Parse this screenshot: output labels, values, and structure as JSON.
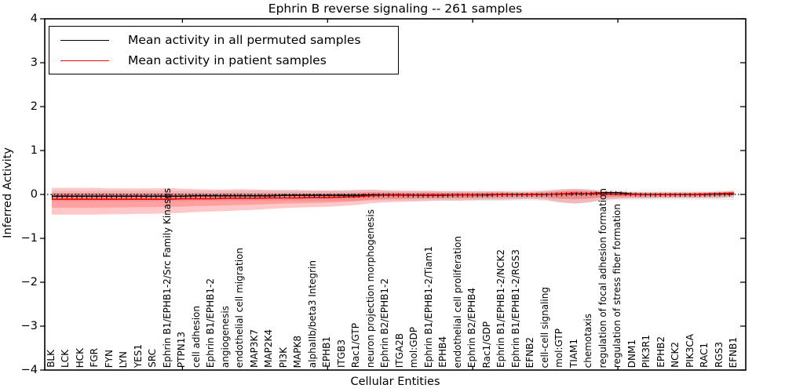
{
  "chart_data": {
    "type": "line",
    "title": "Ephrin B reverse signaling -- 261 samples",
    "xlabel": "Cellular Entities",
    "ylabel": "Inferred Activity",
    "ylim": [
      -4,
      4
    ],
    "ytick_labels": [
      "4",
      "3",
      "2",
      "1",
      "0",
      "−1",
      "−2",
      "−3",
      "−4"
    ],
    "ytick_values": [
      4,
      3,
      2,
      1,
      0,
      -1,
      -2,
      -3,
      -4
    ],
    "x_major_tick_positions": [
      10,
      20,
      30,
      40
    ],
    "grid": false,
    "legend_position": "upper left",
    "zero_reference_line": 0,
    "categories": [
      "BLK",
      "LCK",
      "HCK",
      "FGR",
      "FYN",
      "LYN",
      "YES1",
      "SRC",
      "Ephrin B1/EPHB1-2/Src Family Kinases",
      "PTPN13",
      "cell adhesion",
      "Ephrin B1/EPHB1-2",
      "angiogenesis",
      "endothelial cell migration",
      "MAP3K7",
      "MAP2K4",
      "PI3K",
      "MAPK8",
      "alphaIIb/beta3 Integrin",
      "EPHB1",
      "ITGB3",
      "Rac1/GTP",
      "neuron projection morphogenesis",
      "Ephrin B2/EPHB1-2",
      "ITGA2B",
      "mol:GDP",
      "Ephrin B1/EPHB1-2/Tiam1",
      "EPHB4",
      "endothelial cell proliferation",
      "Ephrin B2/EPHB4",
      "Rac1/GDP",
      "Ephrin B1/EPHB1-2/NCK2",
      "Ephrin B1/EPHB1-2/RGS3",
      "EFNB2",
      "cell-cell signaling",
      "mol:GTP",
      "TIAM1",
      "chemotaxis",
      "regulation of focal adhesion formation",
      "regulation of stress fiber formation",
      "DNM1",
      "PIK3R1",
      "EPHB2",
      "NCK2",
      "PIK3CA",
      "RAC1",
      "RGS3",
      "EFNB1"
    ],
    "legend": [
      {
        "label": "Mean activity in all permuted samples",
        "color": "#000000"
      },
      {
        "label": "Mean activity in patient samples",
        "color": "#ff0000"
      }
    ],
    "series": [
      {
        "name": "Mean activity in all permuted samples",
        "color": "#000000",
        "band_color": "#777777",
        "values": [
          -0.04,
          -0.04,
          -0.04,
          -0.04,
          -0.04,
          -0.04,
          -0.04,
          -0.04,
          -0.04,
          -0.04,
          -0.03,
          -0.03,
          -0.03,
          -0.03,
          -0.03,
          -0.03,
          -0.02,
          -0.02,
          -0.02,
          -0.02,
          -0.02,
          -0.02,
          -0.01,
          -0.01,
          -0.01,
          -0.02,
          -0.02,
          -0.02,
          -0.01,
          -0.01,
          -0.01,
          0.0,
          0.0,
          0.0,
          0.0,
          0.01,
          0.02,
          0.02,
          0.04,
          0.04,
          0.01,
          0.0,
          0.0,
          0.0,
          0.0,
          0.0,
          0.01,
          0.01
        ],
        "band_upper": [
          0.09,
          0.09,
          0.09,
          0.09,
          0.09,
          0.09,
          0.09,
          0.09,
          0.09,
          0.09,
          0.09,
          0.09,
          0.09,
          0.09,
          0.09,
          0.09,
          0.09,
          0.09,
          0.09,
          0.09,
          0.1,
          0.1,
          0.1,
          0.1,
          0.1,
          0.09,
          0.09,
          0.09,
          0.09,
          0.09,
          0.09,
          0.09,
          0.09,
          0.09,
          0.1,
          0.12,
          0.13,
          0.12,
          0.1,
          0.09,
          0.08,
          0.08,
          0.08,
          0.08,
          0.08,
          0.08,
          0.09,
          0.09
        ],
        "band_lower": [
          -0.16,
          -0.16,
          -0.16,
          -0.16,
          -0.16,
          -0.16,
          -0.16,
          -0.16,
          -0.16,
          -0.16,
          -0.15,
          -0.15,
          -0.15,
          -0.15,
          -0.15,
          -0.15,
          -0.15,
          -0.15,
          -0.15,
          -0.15,
          -0.15,
          -0.14,
          -0.14,
          -0.14,
          -0.14,
          -0.14,
          -0.14,
          -0.14,
          -0.15,
          -0.15,
          -0.15,
          -0.15,
          -0.14,
          -0.14,
          -0.15,
          -0.18,
          -0.2,
          -0.18,
          -0.14,
          -0.13,
          -0.12,
          -0.12,
          -0.12,
          -0.12,
          -0.12,
          -0.12,
          -0.12,
          -0.13
        ]
      },
      {
        "name": "Mean activity in patient samples",
        "color": "#ff0000",
        "band_color": "#ff0000",
        "values": [
          -0.11,
          -0.11,
          -0.11,
          -0.11,
          -0.11,
          -0.11,
          -0.11,
          -0.11,
          -0.11,
          -0.1,
          -0.1,
          -0.1,
          -0.09,
          -0.09,
          -0.09,
          -0.08,
          -0.08,
          -0.08,
          -0.07,
          -0.07,
          -0.06,
          -0.05,
          -0.03,
          -0.02,
          -0.02,
          -0.02,
          -0.01,
          -0.01,
          -0.01,
          -0.01,
          0.0,
          0.0,
          0.0,
          0.0,
          0.0,
          0.01,
          0.03,
          0.02,
          0.01,
          0.0,
          0.0,
          0.0,
          0.0,
          0.0,
          0.0,
          0.01,
          0.02,
          0.03
        ],
        "band_upper": [
          0.15,
          0.15,
          0.15,
          0.15,
          0.14,
          0.14,
          0.14,
          0.14,
          0.15,
          0.13,
          0.12,
          0.11,
          0.11,
          0.12,
          0.11,
          0.1,
          0.1,
          0.1,
          0.09,
          0.09,
          0.09,
          0.1,
          0.11,
          0.09,
          0.08,
          0.08,
          0.08,
          0.07,
          0.07,
          0.07,
          0.07,
          0.07,
          0.06,
          0.06,
          0.08,
          0.11,
          0.13,
          0.11,
          0.07,
          0.06,
          0.05,
          0.05,
          0.05,
          0.05,
          0.05,
          0.05,
          0.06,
          0.08
        ],
        "band_lower": [
          -0.46,
          -0.46,
          -0.46,
          -0.46,
          -0.45,
          -0.45,
          -0.44,
          -0.44,
          -0.43,
          -0.42,
          -0.4,
          -0.39,
          -0.38,
          -0.36,
          -0.35,
          -0.33,
          -0.31,
          -0.3,
          -0.29,
          -0.28,
          -0.26,
          -0.24,
          -0.2,
          -0.18,
          -0.17,
          -0.16,
          -0.15,
          -0.14,
          -0.14,
          -0.13,
          -0.12,
          -0.12,
          -0.11,
          -0.1,
          -0.12,
          -0.18,
          -0.21,
          -0.18,
          -0.12,
          -0.1,
          -0.09,
          -0.09,
          -0.08,
          -0.08,
          -0.08,
          -0.08,
          -0.08,
          -0.05
        ]
      }
    ]
  }
}
